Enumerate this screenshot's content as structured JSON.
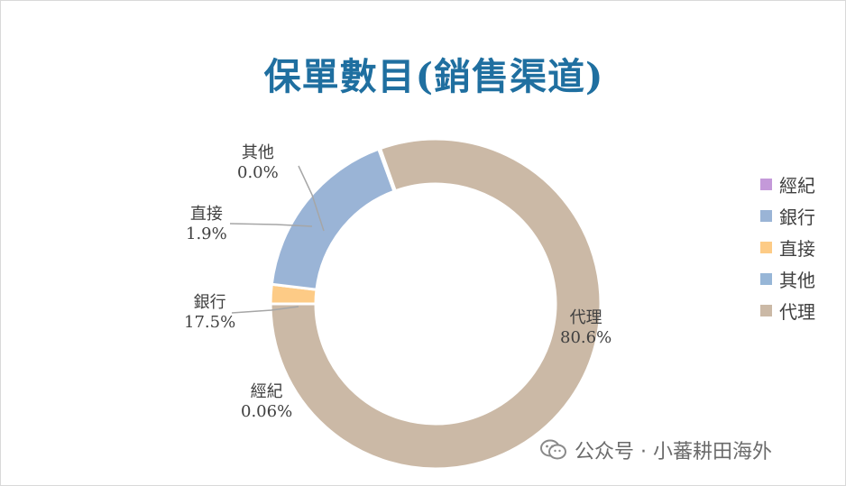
{
  "chart_data": {
    "type": "donut",
    "title": "保單數目(銷售渠道)",
    "slices": [
      {
        "name": "代理",
        "value": 80.6,
        "display": "80.6%",
        "color": "#cbb9a6"
      },
      {
        "name": "其他",
        "value": 0.0,
        "display": "0.0%",
        "color": "#97b6d7"
      },
      {
        "name": "直接",
        "value": 1.9,
        "display": "1.9%",
        "color": "#fdcb86"
      },
      {
        "name": "銀行",
        "value": 17.5,
        "display": "17.5%",
        "color": "#9ab4d6"
      },
      {
        "name": "經紀",
        "value": 0.06,
        "display": "0.06%",
        "color": "#c499d9"
      }
    ],
    "legend": {
      "position": "right",
      "items": [
        {
          "name": "經紀",
          "color": "#c499d9"
        },
        {
          "name": "銀行",
          "color": "#9ab4d6"
        },
        {
          "name": "直接",
          "color": "#fdcb86"
        },
        {
          "name": "其他",
          "color": "#97b6d7"
        },
        {
          "name": "代理",
          "color": "#cbb9a6"
        }
      ]
    },
    "start_angle_deg": -20
  },
  "watermark": {
    "text": "公众号 · 小蕃耕田海外",
    "icon": "wechat-icon"
  }
}
